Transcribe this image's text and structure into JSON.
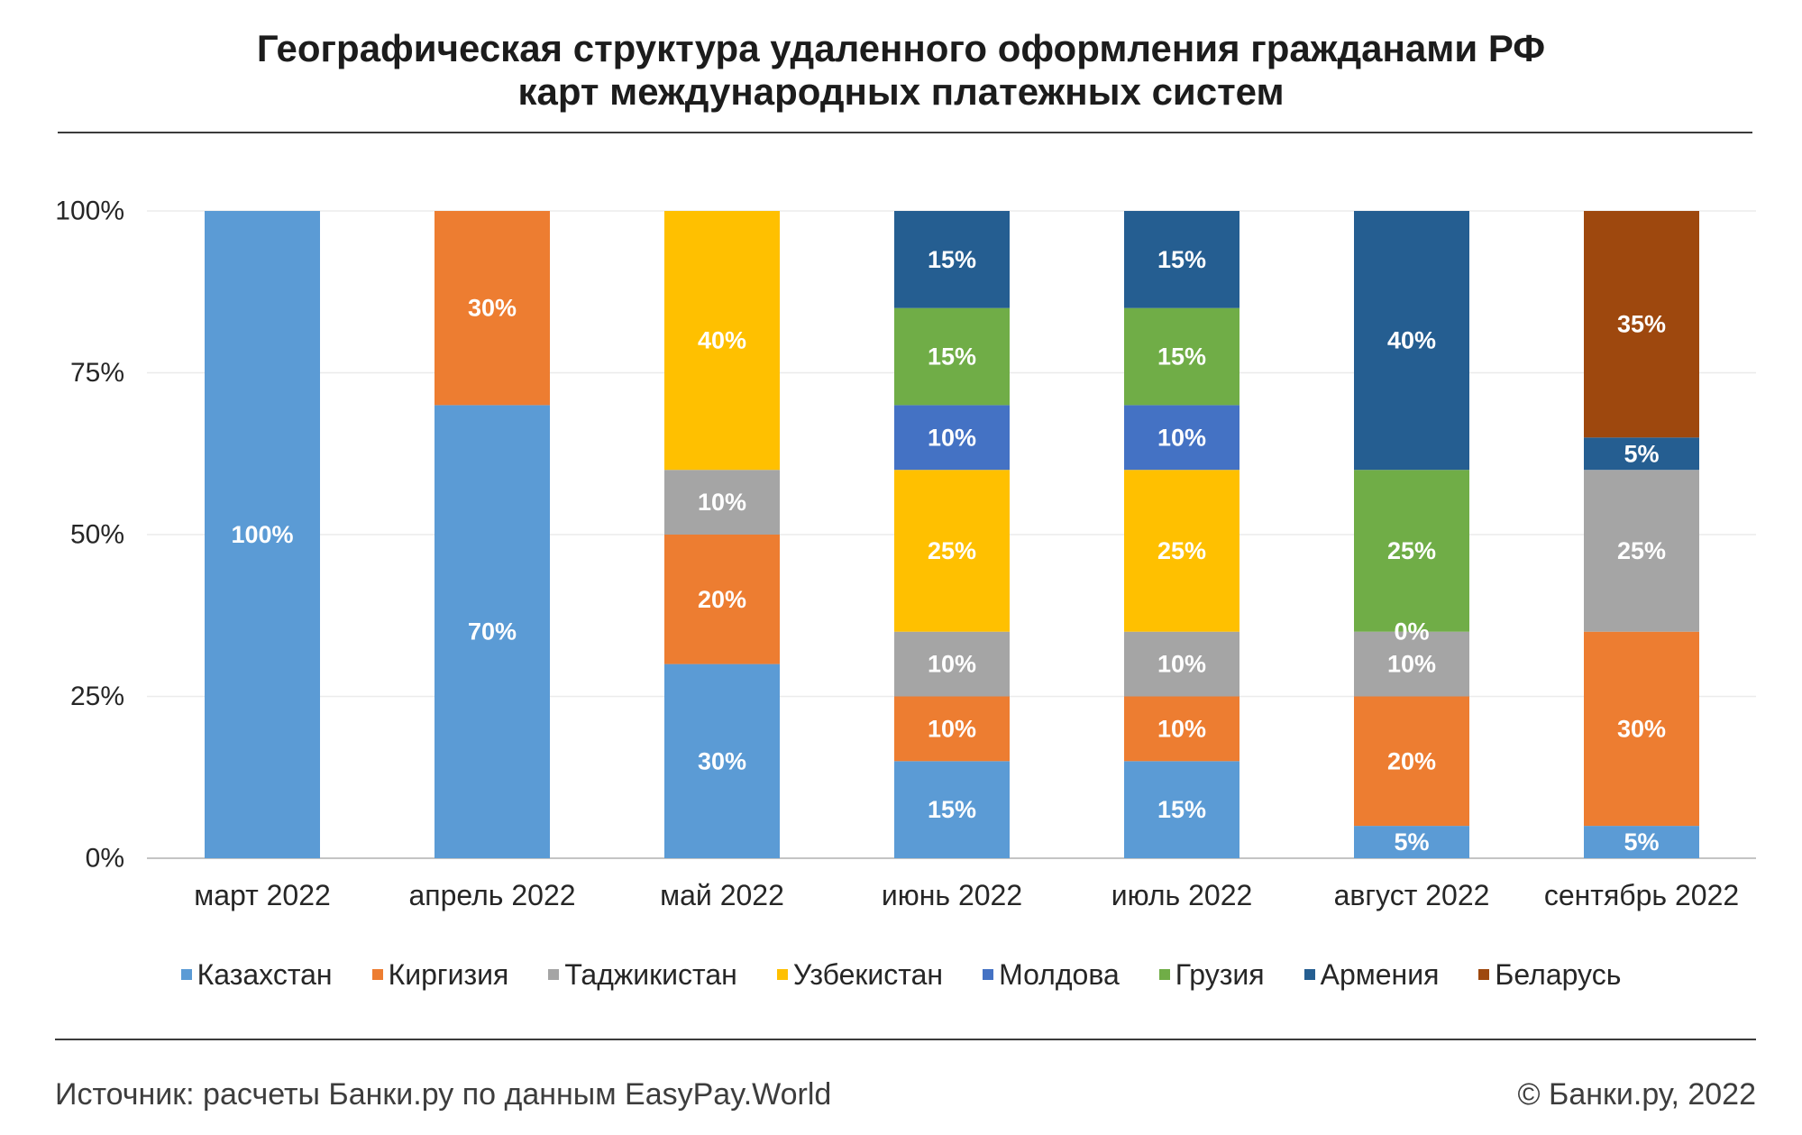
{
  "chart_data": {
    "type": "bar",
    "stacked": true,
    "title_lines": [
      "Географическая структура удаленного оформления гражданами РФ",
      "карт международных платежных систем"
    ],
    "ylim": [
      0,
      100
    ],
    "yticks": [
      0,
      25,
      50,
      75,
      100
    ],
    "ytick_labels": [
      "0%",
      "25%",
      "50%",
      "75%",
      "100%"
    ],
    "grid": true,
    "legend_position": "bottom",
    "categories": [
      "март 2022",
      "апрель 2022",
      "май 2022",
      "июнь 2022",
      "июль 2022",
      "август 2022",
      "сентябрь 2022"
    ],
    "series": [
      {
        "name": "Казахстан",
        "color": "#5B9BD5",
        "values": [
          100,
          70,
          30,
          15,
          15,
          5,
          5
        ],
        "labels": [
          "100%",
          "70%",
          "30%",
          "15%",
          "15%",
          "5%",
          "5%"
        ]
      },
      {
        "name": "Киргизия",
        "color": "#ED7D31",
        "values": [
          null,
          30,
          20,
          10,
          10,
          20,
          30
        ],
        "labels": [
          null,
          "30%",
          "20%",
          "10%",
          "10%",
          "20%",
          "30%"
        ]
      },
      {
        "name": "Таджикистан",
        "color": "#A5A5A5",
        "values": [
          null,
          null,
          10,
          10,
          10,
          10,
          25
        ],
        "labels": [
          null,
          null,
          "10%",
          "10%",
          "10%",
          "10%",
          "25%"
        ]
      },
      {
        "name": "Узбекистан",
        "color": "#FFC000",
        "values": [
          null,
          null,
          40,
          25,
          25,
          0,
          null
        ],
        "labels": [
          null,
          null,
          "40%",
          "25%",
          "25%",
          "0%",
          null
        ]
      },
      {
        "name": "Молдова",
        "color": "#4472C4",
        "values": [
          null,
          null,
          null,
          10,
          10,
          null,
          null
        ],
        "labels": [
          null,
          null,
          null,
          "10%",
          "10%",
          null,
          null
        ]
      },
      {
        "name": "Грузия",
        "color": "#70AD47",
        "values": [
          null,
          null,
          null,
          15,
          15,
          25,
          null
        ],
        "labels": [
          null,
          null,
          null,
          "15%",
          "15%",
          "25%",
          null
        ]
      },
      {
        "name": "Армения",
        "color": "#255E91",
        "values": [
          null,
          null,
          null,
          15,
          15,
          40,
          5
        ],
        "labels": [
          null,
          null,
          null,
          "15%",
          "15%",
          "40%",
          "5%"
        ]
      },
      {
        "name": "Беларусь",
        "color": "#9E480E",
        "values": [
          null,
          null,
          null,
          null,
          null,
          null,
          35
        ],
        "labels": [
          null,
          null,
          null,
          null,
          null,
          null,
          "35%"
        ]
      }
    ]
  },
  "footer": {
    "source": "Источник: расчеты Банки.ру по данным EasyPay.World",
    "copyright": "© Банки.ру, 2022"
  }
}
